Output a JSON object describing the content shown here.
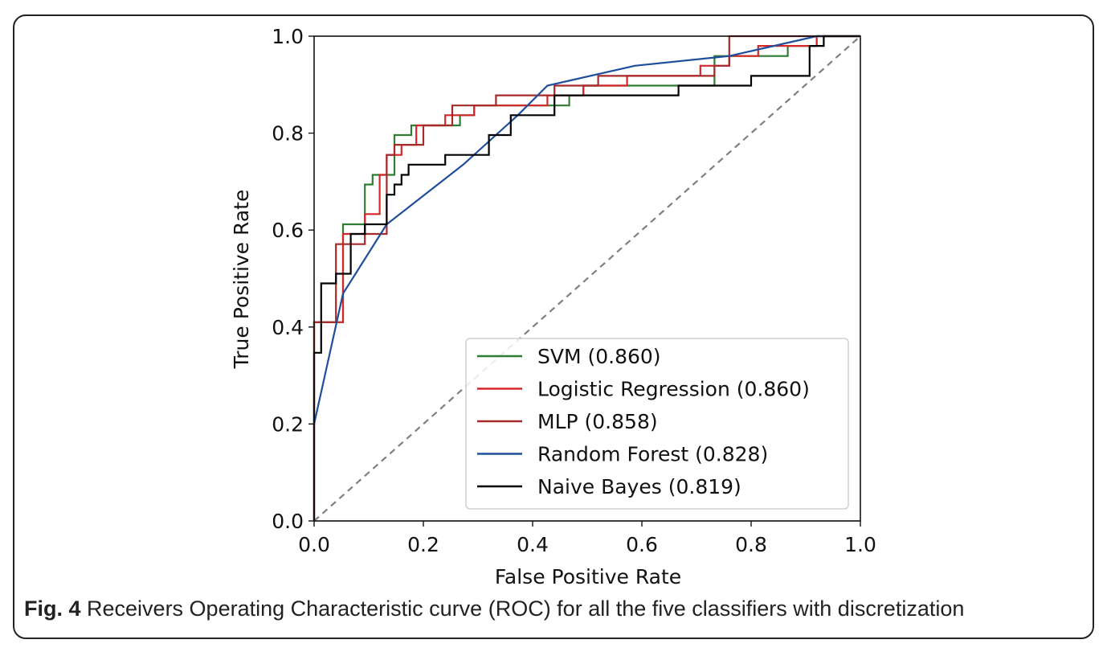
{
  "caption": {
    "label": "Fig. 4",
    "text": " Receivers Operating Characteristic curve (ROC) for all the five classifiers with discretization"
  },
  "chart_data": {
    "type": "line",
    "xlabel": "False Positive Rate",
    "ylabel": "True Positive Rate",
    "xlim": [
      0.0,
      1.0
    ],
    "ylim": [
      0.0,
      1.0
    ],
    "xticks": [
      "0.0",
      "0.2",
      "0.4",
      "0.6",
      "0.8",
      "1.0"
    ],
    "yticks": [
      "0.0",
      "0.2",
      "0.4",
      "0.6",
      "0.8",
      "1.0"
    ],
    "grid": false,
    "legend_position": "lower-right",
    "diagonal": {
      "x": [
        0,
        1
      ],
      "y": [
        0,
        1
      ],
      "style": "dashed",
      "color": "#808080"
    },
    "series": [
      {
        "name": "SVM (0.860)",
        "color": "#2e7d32",
        "x": [
          0.0,
          0.0,
          0.053,
          0.053,
          0.093,
          0.093,
          0.107,
          0.107,
          0.147,
          0.147,
          0.178,
          0.178,
          0.267,
          0.267,
          0.293,
          0.293,
          0.373,
          0.373,
          0.467,
          0.467,
          0.493,
          0.493,
          0.733,
          0.733,
          0.867,
          0.867,
          0.92,
          0.92,
          1.0
        ],
        "y": [
          0.0,
          0.41,
          0.41,
          0.612,
          0.612,
          0.694,
          0.694,
          0.714,
          0.714,
          0.796,
          0.796,
          0.816,
          0.816,
          0.837,
          0.837,
          0.857,
          0.857,
          0.857,
          0.857,
          0.878,
          0.878,
          0.898,
          0.898,
          0.959,
          0.959,
          0.98,
          0.98,
          1.0,
          1.0
        ]
      },
      {
        "name": "Logistic Regression (0.860)",
        "color": "#d62728",
        "x": [
          0.0,
          0.0,
          0.053,
          0.053,
          0.093,
          0.093,
          0.12,
          0.12,
          0.133,
          0.133,
          0.16,
          0.16,
          0.187,
          0.187,
          0.24,
          0.24,
          0.293,
          0.293,
          0.427,
          0.427,
          0.493,
          0.493,
          0.573,
          0.573,
          0.707,
          0.707,
          0.76,
          0.76,
          0.813,
          0.813,
          0.92,
          0.92,
          1.0
        ],
        "y": [
          0.0,
          0.41,
          0.41,
          0.592,
          0.592,
          0.633,
          0.633,
          0.714,
          0.714,
          0.755,
          0.755,
          0.776,
          0.776,
          0.816,
          0.816,
          0.837,
          0.837,
          0.857,
          0.857,
          0.878,
          0.878,
          0.898,
          0.898,
          0.918,
          0.918,
          0.939,
          0.939,
          0.959,
          0.959,
          0.98,
          0.98,
          1.0,
          1.0
        ]
      },
      {
        "name": "MLP (0.858)",
        "color": "#a52a2a",
        "x": [
          0.0,
          0.0,
          0.04,
          0.04,
          0.093,
          0.093,
          0.133,
          0.133,
          0.147,
          0.147,
          0.2,
          0.2,
          0.253,
          0.253,
          0.333,
          0.333,
          0.44,
          0.44,
          0.52,
          0.52,
          0.64,
          0.64,
          0.733,
          0.733,
          0.76,
          0.76,
          0.92,
          0.92,
          1.0
        ],
        "y": [
          0.0,
          0.41,
          0.41,
          0.571,
          0.571,
          0.592,
          0.592,
          0.755,
          0.755,
          0.776,
          0.776,
          0.816,
          0.816,
          0.857,
          0.857,
          0.878,
          0.878,
          0.898,
          0.898,
          0.918,
          0.918,
          0.918,
          0.918,
          0.939,
          0.939,
          1.0,
          1.0,
          1.0,
          1.0
        ]
      },
      {
        "name": "Random Forest (0.828)",
        "color": "#1f4e9c",
        "x": [
          0.0,
          0.053,
          0.133,
          0.273,
          0.373,
          0.427,
          0.587,
          0.76,
          0.92,
          1.0
        ],
        "y": [
          0.2,
          0.469,
          0.612,
          0.735,
          0.837,
          0.898,
          0.939,
          0.959,
          1.0,
          1.0
        ]
      },
      {
        "name": "Naive Bayes (0.819)",
        "color": "#000000",
        "x": [
          0.0,
          0.0,
          0.013,
          0.013,
          0.04,
          0.04,
          0.067,
          0.067,
          0.093,
          0.093,
          0.133,
          0.133,
          0.147,
          0.147,
          0.16,
          0.16,
          0.173,
          0.173,
          0.24,
          0.24,
          0.32,
          0.32,
          0.36,
          0.36,
          0.44,
          0.44,
          0.667,
          0.667,
          0.8,
          0.8,
          0.907,
          0.907,
          0.933,
          0.933,
          1.0
        ],
        "y": [
          0.0,
          0.347,
          0.347,
          0.49,
          0.49,
          0.51,
          0.51,
          0.592,
          0.592,
          0.612,
          0.612,
          0.673,
          0.673,
          0.694,
          0.694,
          0.714,
          0.714,
          0.735,
          0.735,
          0.755,
          0.755,
          0.796,
          0.796,
          0.837,
          0.837,
          0.878,
          0.878,
          0.898,
          0.898,
          0.918,
          0.918,
          0.98,
          0.98,
          1.0,
          1.0
        ]
      }
    ]
  }
}
